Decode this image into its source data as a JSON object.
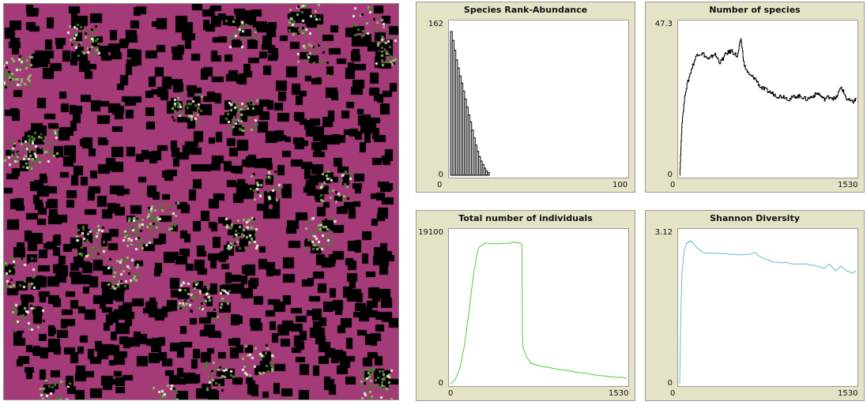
{
  "world": {
    "patch_color": "#a43a78",
    "label": ""
  },
  "chart_data": [
    {
      "type": "bar",
      "title": "Species Rank-Abundance",
      "xlim": [
        0,
        100
      ],
      "ylim": [
        0,
        162
      ],
      "x_min_label": "0",
      "x_max_label": "100",
      "y_min_label": "0",
      "y_max_label": "162",
      "color": "#000000",
      "values": [
        162,
        152,
        141,
        130,
        121,
        112,
        104,
        95,
        86,
        77,
        68,
        60,
        51,
        42,
        34,
        27,
        21,
        16,
        12,
        8,
        5,
        3
      ]
    },
    {
      "type": "line",
      "title": "Number of species",
      "xlim": [
        0,
        1530
      ],
      "ylim": [
        0,
        47.3
      ],
      "x_min_label": "0",
      "x_max_label": "1530",
      "y_min_label": "0",
      "y_max_label": "47.3",
      "color": "#000000",
      "x": [
        0,
        20,
        50,
        100,
        150,
        200,
        250,
        300,
        350,
        400,
        450,
        500,
        530,
        560,
        600,
        650,
        700,
        750,
        800,
        850,
        900,
        950,
        1000,
        1050,
        1100,
        1150,
        1200,
        1250,
        1300,
        1350,
        1400,
        1450,
        1500,
        1530
      ],
      "y": [
        0,
        18,
        28,
        35,
        40,
        40,
        38,
        40,
        37,
        40,
        41,
        39,
        45,
        36,
        33,
        32,
        29,
        28,
        27,
        26,
        26,
        25,
        26,
        26,
        25,
        26,
        27,
        25,
        26,
        25,
        29,
        25,
        24,
        25
      ]
    },
    {
      "type": "line",
      "title": "Total number of individuals",
      "xlim": [
        0,
        1530
      ],
      "ylim": [
        0,
        19100
      ],
      "x_min_label": "0",
      "x_max_label": "1530",
      "y_min_label": "0",
      "y_max_label": "19100",
      "color": "#59c73e",
      "x": [
        0,
        40,
        80,
        120,
        160,
        200,
        240,
        280,
        300,
        400,
        500,
        560,
        600,
        620,
        625,
        630,
        660,
        700,
        800,
        900,
        1000,
        1100,
        1200,
        1300,
        1400,
        1500,
        1530
      ],
      "y": [
        0,
        500,
        2000,
        5000,
        9500,
        14500,
        18000,
        18500,
        18700,
        18600,
        18700,
        18800,
        18700,
        18500,
        6500,
        4800,
        3600,
        2700,
        2300,
        2000,
        1800,
        1500,
        1300,
        1100,
        900,
        800,
        750
      ]
    },
    {
      "type": "line",
      "title": "Shannon Diversity",
      "xlim": [
        0,
        1530
      ],
      "ylim": [
        0,
        3.12
      ],
      "x_min_label": "0",
      "x_max_label": "1530",
      "y_min_label": "0",
      "y_max_label": "3.12",
      "color": "#6fbccb",
      "x": [
        0,
        10,
        20,
        40,
        60,
        80,
        100,
        150,
        200,
        300,
        400,
        500,
        600,
        650,
        700,
        800,
        900,
        1000,
        1100,
        1200,
        1250,
        1300,
        1350,
        1400,
        1450,
        1500,
        1530
      ],
      "y": [
        0,
        1.5,
        2.4,
        2.9,
        3.05,
        3.08,
        3.1,
        2.95,
        2.85,
        2.83,
        2.82,
        2.8,
        2.8,
        2.85,
        2.75,
        2.65,
        2.63,
        2.6,
        2.6,
        2.55,
        2.5,
        2.6,
        2.45,
        2.55,
        2.45,
        2.4,
        2.45
      ]
    }
  ]
}
